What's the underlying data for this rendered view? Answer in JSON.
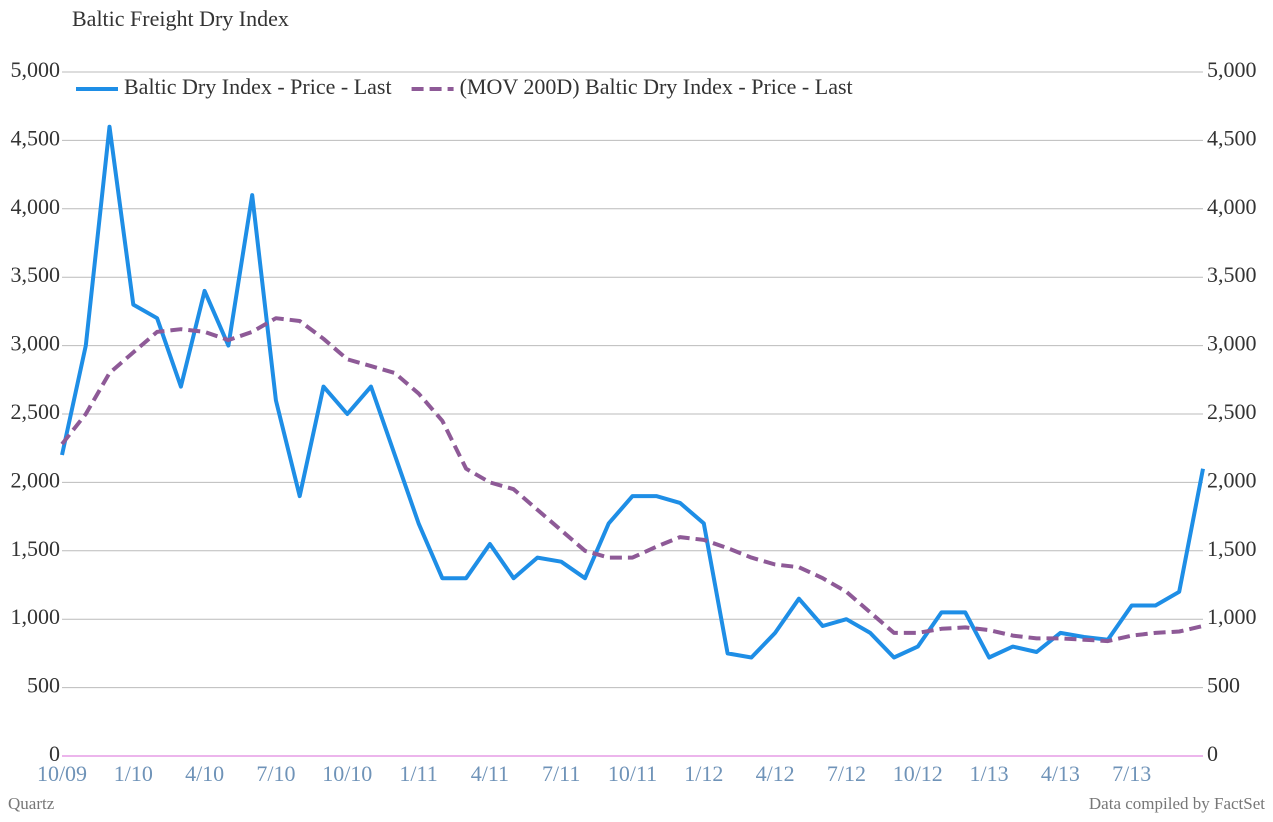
{
  "chart_data": {
    "type": "line",
    "title": "Baltic Freight Dry Index",
    "source_left": "Quartz",
    "source_right": "Data compiled by FactSet",
    "categories": [
      "10/09",
      null,
      null,
      "1/10",
      null,
      null,
      "4/10",
      null,
      null,
      "7/10",
      null,
      null,
      "10/10",
      null,
      null,
      "1/11",
      null,
      null,
      "4/11",
      null,
      null,
      "7/11",
      null,
      null,
      "10/11",
      null,
      null,
      "1/12",
      null,
      null,
      "4/12",
      null,
      null,
      "7/12",
      null,
      null,
      "10/12",
      null,
      null,
      "1/13",
      null,
      null,
      "4/13",
      null,
      null,
      "7/13",
      null,
      null,
      null
    ],
    "series": [
      {
        "name": "Baltic Dry Index - Price - Last",
        "color": "#1e8ee6",
        "dash": false,
        "values": [
          2200,
          3000,
          4600,
          3300,
          3200,
          2700,
          3400,
          3000,
          4100,
          2600,
          1900,
          2700,
          2500,
          2700,
          2200,
          1700,
          1300,
          1300,
          1550,
          1300,
          1450,
          1420,
          1300,
          1700,
          1900,
          1900,
          1850,
          1700,
          750,
          720,
          900,
          1150,
          950,
          1000,
          900,
          720,
          800,
          1050,
          1050,
          720,
          800,
          760,
          900,
          870,
          850,
          1100,
          1100,
          1200,
          2100
        ]
      },
      {
        "name": "(MOV 200D) Baltic Dry Index - Price - Last",
        "color": "#8e5a97",
        "dash": true,
        "values": [
          2280,
          2500,
          2800,
          2950,
          3100,
          3120,
          3100,
          3040,
          3100,
          3200,
          3180,
          3050,
          2900,
          2850,
          2800,
          2650,
          2450,
          2100,
          2000,
          1950,
          1800,
          1650,
          1500,
          1450,
          1450,
          1530,
          1600,
          1580,
          1520,
          1450,
          1400,
          1380,
          1300,
          1200,
          1050,
          900,
          900,
          930,
          940,
          920,
          880,
          860,
          860,
          850,
          840,
          880,
          900,
          910,
          950
        ]
      }
    ],
    "ylim": [
      0,
      5000
    ],
    "yticks": [
      0,
      {
        "value": 500,
        "label": "500"
      },
      {
        "value": 1000,
        "label": "1,000"
      },
      {
        "value": 1500,
        "label": "1,500"
      },
      {
        "value": 2000,
        "label": "2,000"
      },
      {
        "value": 2500,
        "label": "2,500"
      },
      {
        "value": 3000,
        "label": "3,000"
      },
      {
        "value": 3500,
        "label": "3,500"
      },
      {
        "value": 4000,
        "label": "4,000"
      },
      {
        "value": 4500,
        "label": "4,500"
      },
      {
        "value": 5000,
        "label": "5,000"
      }
    ],
    "y2lim": [
      0,
      5000
    ],
    "y2ticks": [
      0,
      {
        "value": 500,
        "label": "500"
      },
      {
        "value": 1000,
        "label": "1,000"
      },
      {
        "value": 1500,
        "label": "1,500"
      },
      {
        "value": 2000,
        "label": "2,000"
      },
      {
        "value": 2500,
        "label": "2,500"
      },
      {
        "value": 3000,
        "label": "3,000"
      },
      {
        "value": 3500,
        "label": "3,500"
      },
      {
        "value": 4000,
        "label": "4,000"
      },
      {
        "value": 4500,
        "label": "4,500"
      },
      {
        "value": 5000,
        "label": "5,000"
      }
    ],
    "grid": true
  }
}
